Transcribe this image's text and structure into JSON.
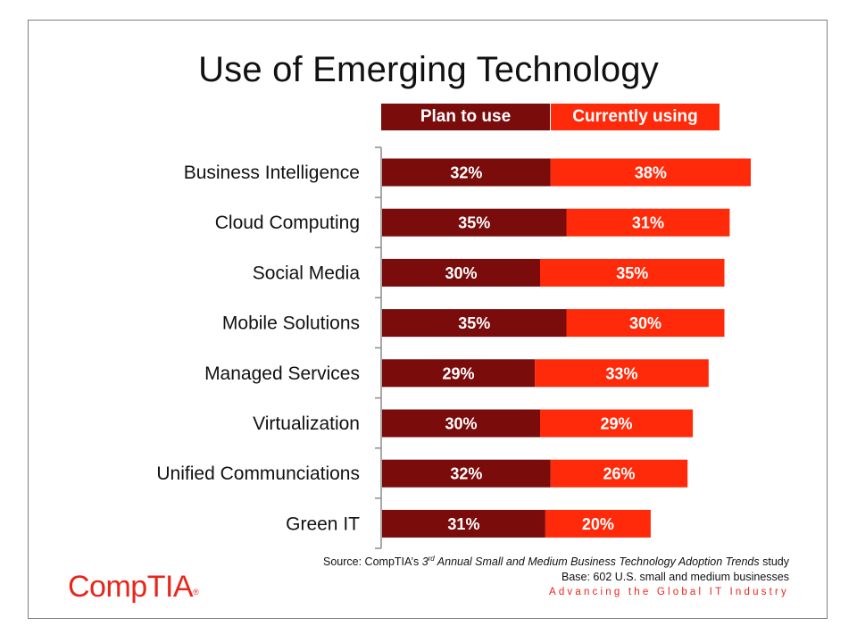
{
  "title": "Use of Emerging Technology",
  "legend": {
    "plan_label": "Plan to use",
    "current_label": "Currently using"
  },
  "colors": {
    "plan": "#7a0c0c",
    "current": "#ff2a0a",
    "brand": "#e8261b"
  },
  "chart_data": {
    "type": "bar",
    "orientation": "horizontal",
    "stacked": true,
    "title": "Use of Emerging Technology",
    "categories": [
      "Business Intelligence",
      "Cloud Computing",
      "Social Media",
      "Mobile Solutions",
      "Managed Services",
      "Virtualization",
      "Unified Communciations",
      "Green IT"
    ],
    "series": [
      {
        "name": "Plan to use",
        "values": [
          32,
          35,
          30,
          35,
          29,
          30,
          32,
          31
        ]
      },
      {
        "name": "Currently using",
        "values": [
          38,
          31,
          35,
          30,
          33,
          29,
          26,
          20
        ]
      }
    ],
    "value_suffix": "%",
    "legend_position": "top",
    "grid": false
  },
  "footer": {
    "source_prefix": "Source: CompTIA’s ",
    "source_ord": "3",
    "source_sup": "rd",
    "source_title": " Annual Small and Medium Business Technology Adoption Trends",
    "source_suffix": " study",
    "base": "Base: 602 U.S. small and medium businesses",
    "tagline": "Advancing the Global IT Industry",
    "logo_text": "CompTIA",
    "logo_reg": "®"
  }
}
